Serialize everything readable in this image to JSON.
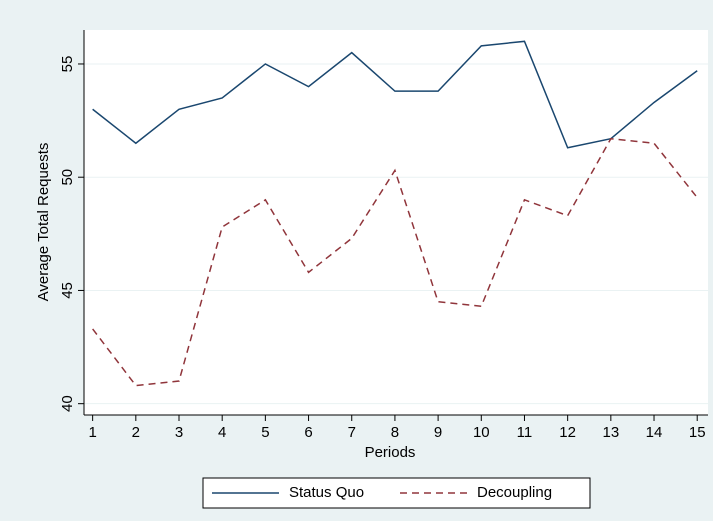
{
  "chart_data": {
    "type": "line",
    "x_label": "Periods",
    "y_label": "Average Total Requests",
    "x": [
      1,
      2,
      3,
      4,
      5,
      6,
      7,
      8,
      9,
      10,
      11,
      12,
      13,
      14,
      15
    ],
    "series": [
      {
        "name": "Status Quo",
        "color": "#1a476f",
        "dash": "solid",
        "values": [
          53.0,
          51.5,
          53.0,
          53.5,
          55.0,
          54.0,
          55.5,
          53.8,
          53.8,
          55.8,
          56.0,
          51.3,
          51.7,
          53.3,
          54.7
        ]
      },
      {
        "name": "Decoupling",
        "color": "#90353b",
        "dash": "dashed",
        "values": [
          43.3,
          40.8,
          41.0,
          47.8,
          49.0,
          45.8,
          47.3,
          50.3,
          44.5,
          44.3,
          49.0,
          48.3,
          51.7,
          51.5,
          49.1
        ]
      }
    ],
    "xlim": [
      0.8,
      15.25
    ],
    "xticks": [
      1,
      2,
      3,
      4,
      5,
      6,
      7,
      8,
      9,
      10,
      11,
      12,
      13,
      14,
      15
    ],
    "ylim": [
      39.5,
      56.5
    ],
    "yticks": [
      40,
      45,
      50,
      55
    ],
    "grid": true,
    "legend": "bottom"
  }
}
